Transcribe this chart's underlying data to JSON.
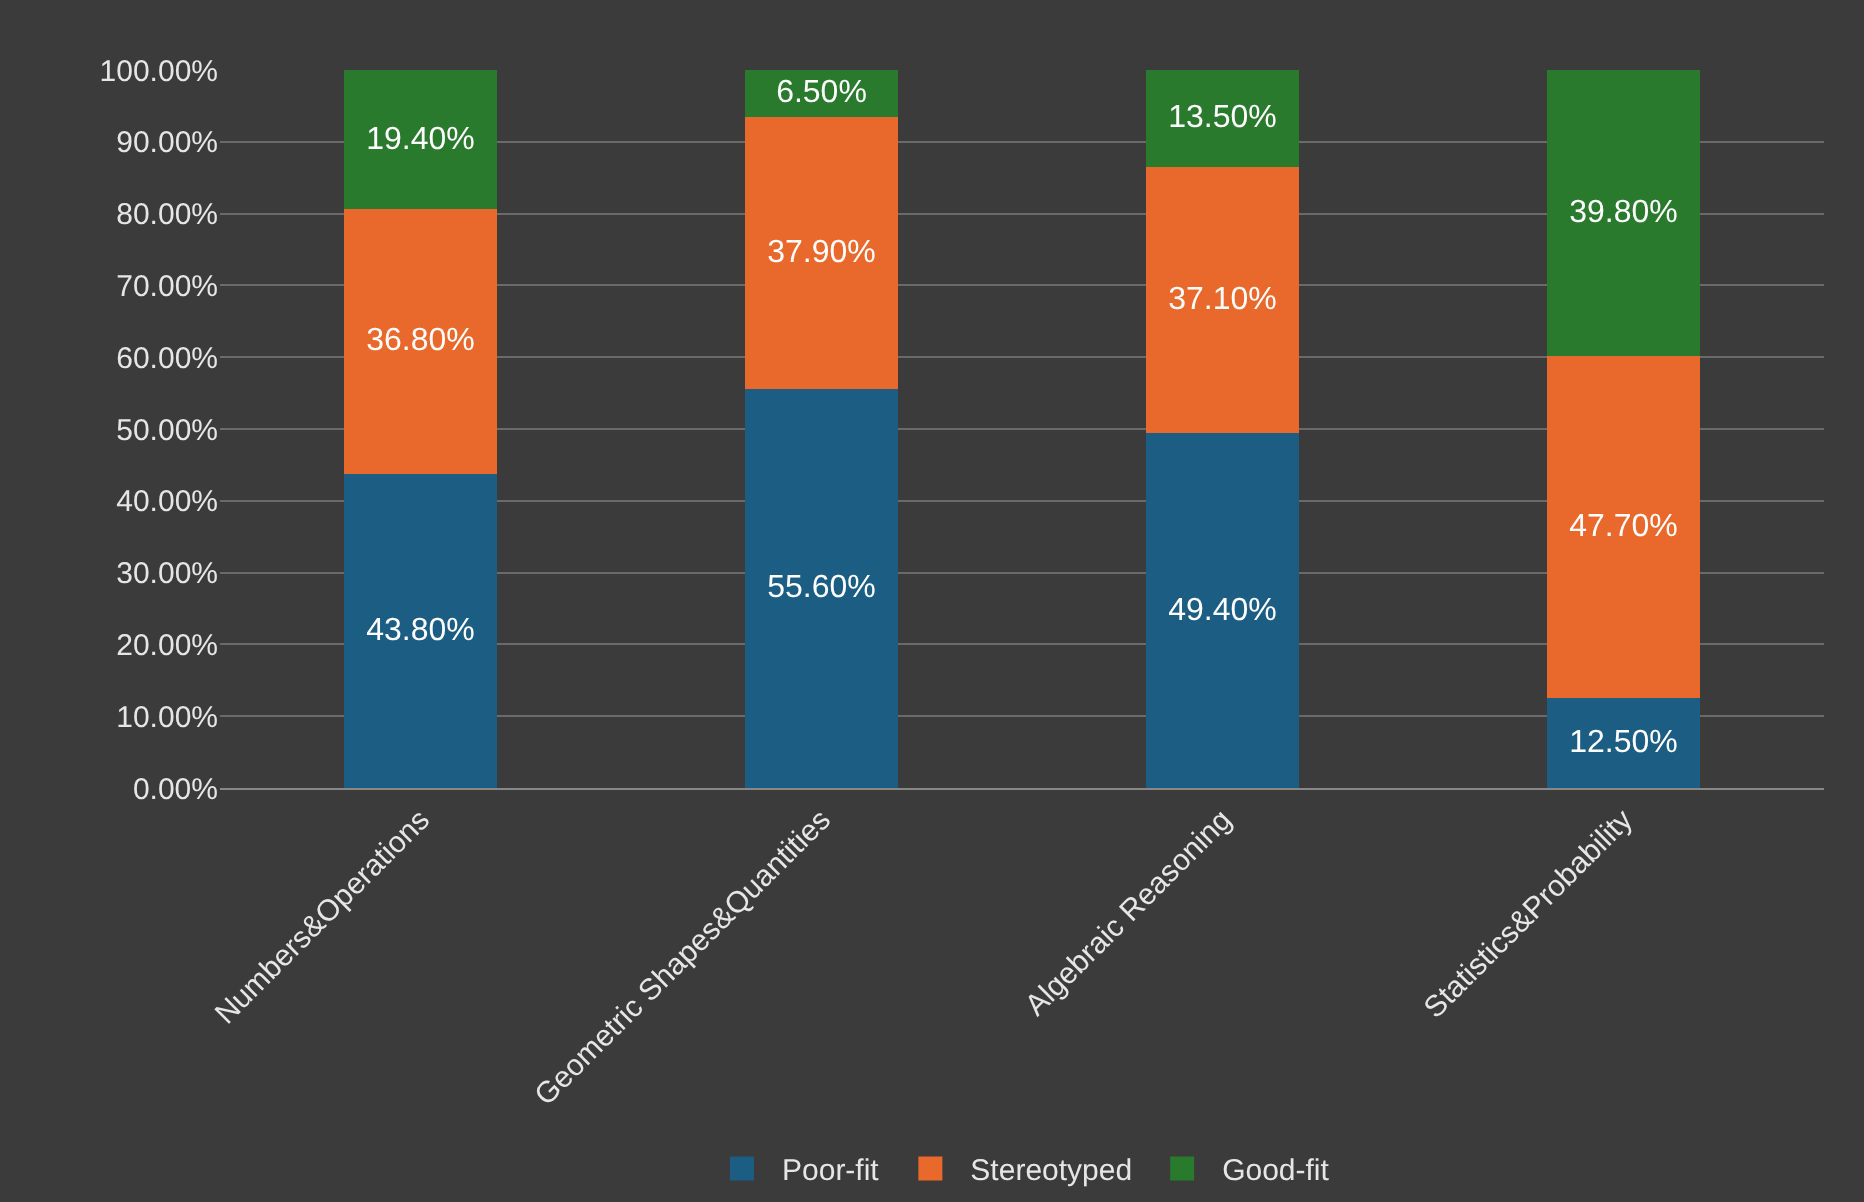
{
  "chart_data": {
    "type": "bar",
    "stacked": true,
    "categories": [
      "Numbers&Operations",
      "Geometric Shapes&Quantities",
      "Algebraic Reasoning",
      "Statistics&Probability"
    ],
    "series": [
      {
        "name": "Poor-fit",
        "color": "#1c5d84",
        "values": [
          43.8,
          55.6,
          49.4,
          12.5
        ],
        "value_labels": [
          "43.80%",
          "55.60%",
          "49.40%",
          "12.50%"
        ]
      },
      {
        "name": "Stereotyped",
        "color": "#e8692b",
        "values": [
          36.8,
          37.9,
          37.1,
          47.7
        ],
        "value_labels": [
          "36.80%",
          "37.90%",
          "37.10%",
          "47.70%"
        ]
      },
      {
        "name": "Good-fit",
        "color": "#2a7a2e",
        "values": [
          19.4,
          6.5,
          13.5,
          39.8
        ],
        "value_labels": [
          "19.40%",
          "6.50%",
          "13.50%",
          "39.80%"
        ]
      }
    ],
    "ylim": [
      0,
      100
    ],
    "yticks": [
      {
        "value": 0,
        "label": "0.00%"
      },
      {
        "value": 10,
        "label": "10.00%"
      },
      {
        "value": 20,
        "label": "20.00%"
      },
      {
        "value": 30,
        "label": "30.00%"
      },
      {
        "value": 40,
        "label": "40.00%"
      },
      {
        "value": 50,
        "label": "50.00%"
      },
      {
        "value": 60,
        "label": "60.00%"
      },
      {
        "value": 70,
        "label": "70.00%"
      },
      {
        "value": 80,
        "label": "80.00%"
      },
      {
        "value": 90,
        "label": "90.00%"
      },
      {
        "value": 100,
        "label": "100.00%"
      }
    ],
    "grid": "y",
    "legend": "bottom"
  }
}
